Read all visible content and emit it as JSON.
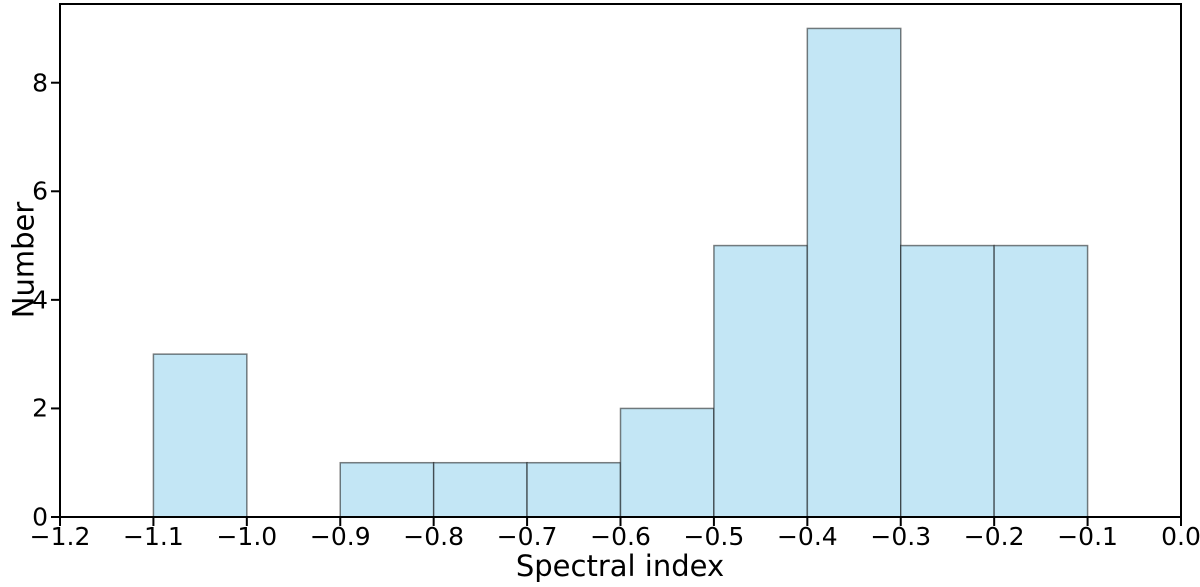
{
  "figure": {
    "background": "#ffffff"
  },
  "chart_data": {
    "type": "bar",
    "subtype": "histogram",
    "title": "",
    "xlabel": "Spectral index",
    "ylabel": "Number",
    "xlim": [
      -1.2,
      0.0
    ],
    "ylim": [
      0,
      9.45
    ],
    "grid": false,
    "legend": null,
    "bin_width": 0.1,
    "bins": [
      {
        "left": -1.1,
        "right": -1.0,
        "count": 3
      },
      {
        "left": -0.9,
        "right": -0.8,
        "count": 1
      },
      {
        "left": -0.8,
        "right": -0.7,
        "count": 1
      },
      {
        "left": -0.7,
        "right": -0.6,
        "count": 1
      },
      {
        "left": -0.6,
        "right": -0.5,
        "count": 2
      },
      {
        "left": -0.5,
        "right": -0.4,
        "count": 5
      },
      {
        "left": -0.4,
        "right": -0.3,
        "count": 9
      },
      {
        "left": -0.3,
        "right": -0.2,
        "count": 5
      },
      {
        "left": -0.2,
        "right": -0.1,
        "count": 5
      }
    ],
    "x_ticks": [
      {
        "value": -1.2,
        "label": "−1.2"
      },
      {
        "value": -1.1,
        "label": "−1.1"
      },
      {
        "value": -1.0,
        "label": "−1.0"
      },
      {
        "value": -0.9,
        "label": "−0.9"
      },
      {
        "value": -0.8,
        "label": "−0.8"
      },
      {
        "value": -0.7,
        "label": "−0.7"
      },
      {
        "value": -0.6,
        "label": "−0.6"
      },
      {
        "value": -0.5,
        "label": "−0.5"
      },
      {
        "value": -0.4,
        "label": "−0.4"
      },
      {
        "value": -0.3,
        "label": "−0.3"
      },
      {
        "value": -0.2,
        "label": "−0.2"
      },
      {
        "value": -0.1,
        "label": "−0.1"
      },
      {
        "value": 0.0,
        "label": "0.0"
      }
    ],
    "y_ticks": [
      {
        "value": 0,
        "label": "0"
      },
      {
        "value": 2,
        "label": "2"
      },
      {
        "value": 4,
        "label": "4"
      },
      {
        "value": 6,
        "label": "6"
      },
      {
        "value": 8,
        "label": "8"
      }
    ],
    "colors": {
      "bar_fill": "#c3e6f5",
      "bar_edge": "rgba(0,0,0,0.5)",
      "spine": "#000000",
      "tick": "#000000",
      "text": "#000000"
    }
  }
}
